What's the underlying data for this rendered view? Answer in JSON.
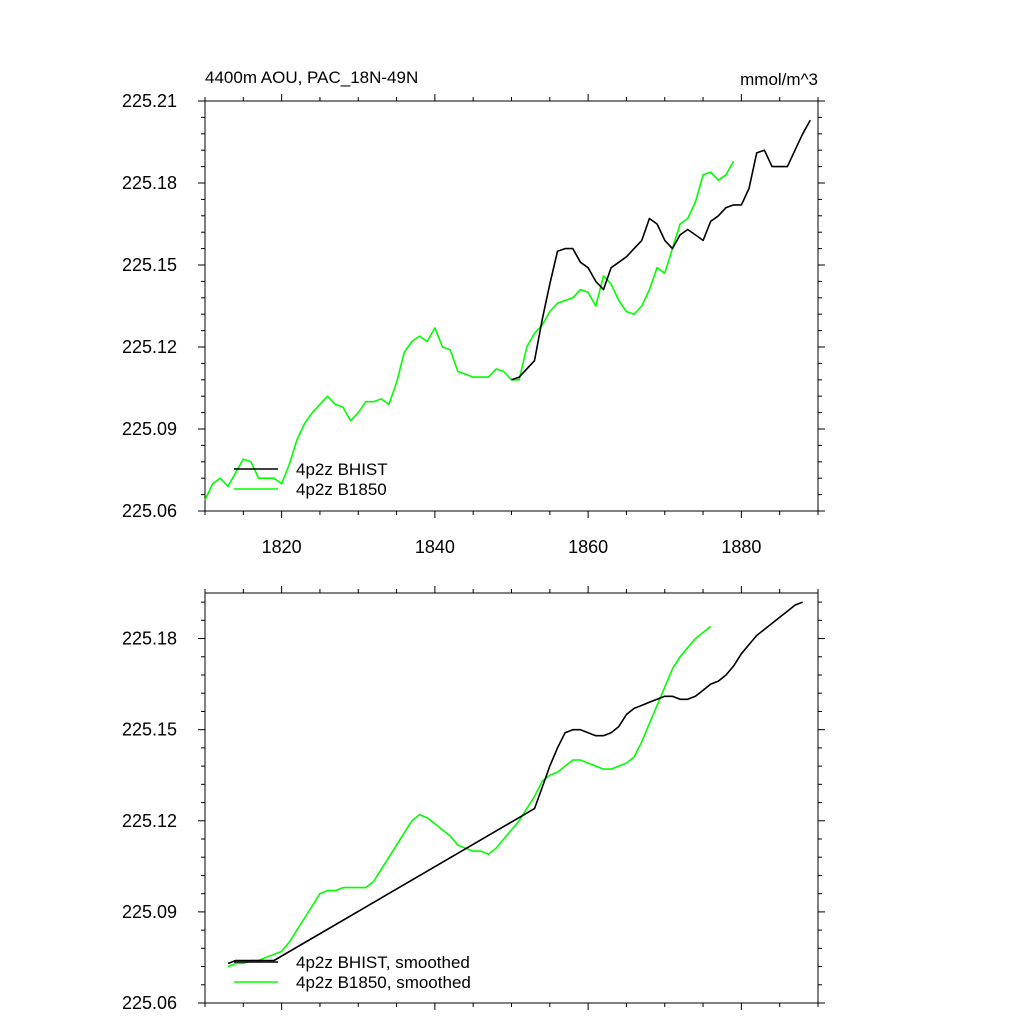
{
  "chart_data": [
    {
      "type": "line",
      "title_left": "4400m AOU, PAC_18N-49N",
      "title_right": "mmol/m^3",
      "xlim": [
        1810,
        1890
      ],
      "ylim": [
        225.06,
        225.21
      ],
      "x_ticks": [
        1820,
        1840,
        1860,
        1880
      ],
      "x_tick_labels": [
        "1820",
        "1840",
        "1860",
        "1880"
      ],
      "y_ticks": [
        225.06,
        225.09,
        225.12,
        225.15,
        225.18,
        225.21
      ],
      "y_tick_labels": [
        "225.06",
        "225.09",
        "225.12",
        "225.15",
        "225.18",
        "225.21"
      ],
      "legend_position": "lower-left",
      "series": [
        {
          "name": "4p2z BHIST",
          "color": "#000000",
          "x": [
            1850,
            1851,
            1852,
            1853,
            1854,
            1855,
            1856,
            1857,
            1858,
            1859,
            1860,
            1861,
            1862,
            1863,
            1864,
            1865,
            1866,
            1867,
            1868,
            1869,
            1870,
            1871,
            1872,
            1873,
            1874,
            1875,
            1876,
            1877,
            1878,
            1879,
            1880,
            1881,
            1882,
            1883,
            1884,
            1885,
            1886,
            1887,
            1888,
            1889
          ],
          "y": [
            225.108,
            225.109,
            225.112,
            225.115,
            225.13,
            225.143,
            225.155,
            225.156,
            225.156,
            225.151,
            225.149,
            225.144,
            225.141,
            225.149,
            225.151,
            225.153,
            225.156,
            225.159,
            225.167,
            225.165,
            225.159,
            225.156,
            225.161,
            225.163,
            225.161,
            225.159,
            225.166,
            225.168,
            225.171,
            225.172,
            225.172,
            225.178,
            225.191,
            225.192,
            225.186,
            225.186,
            225.186,
            225.192,
            225.198,
            225.203
          ]
        },
        {
          "name": "4p2z B1850",
          "color": "#00ff00",
          "x": [
            1810,
            1811,
            1812,
            1813,
            1814,
            1815,
            1816,
            1817,
            1818,
            1819,
            1820,
            1821,
            1822,
            1823,
            1824,
            1825,
            1826,
            1827,
            1828,
            1829,
            1830,
            1831,
            1832,
            1833,
            1834,
            1835,
            1836,
            1837,
            1838,
            1839,
            1840,
            1841,
            1842,
            1843,
            1844,
            1845,
            1846,
            1847,
            1848,
            1849,
            1850,
            1851,
            1852,
            1853,
            1854,
            1855,
            1856,
            1857,
            1858,
            1859,
            1860,
            1861,
            1862,
            1863,
            1864,
            1865,
            1866,
            1867,
            1868,
            1869,
            1870,
            1871,
            1872,
            1873,
            1874,
            1875,
            1876,
            1877,
            1878,
            1879
          ],
          "y": [
            225.064,
            225.07,
            225.072,
            225.069,
            225.074,
            225.079,
            225.078,
            225.072,
            225.072,
            225.072,
            225.07,
            225.077,
            225.086,
            225.092,
            225.096,
            225.099,
            225.102,
            225.099,
            225.098,
            225.093,
            225.096,
            225.1,
            225.1,
            225.101,
            225.099,
            225.107,
            225.118,
            225.122,
            225.124,
            225.122,
            225.127,
            225.12,
            225.119,
            225.111,
            225.11,
            225.109,
            225.109,
            225.109,
            225.112,
            225.111,
            225.108,
            225.108,
            225.12,
            225.125,
            225.128,
            225.133,
            225.136,
            225.137,
            225.138,
            225.141,
            225.14,
            225.135,
            225.146,
            225.143,
            225.137,
            225.133,
            225.132,
            225.135,
            225.141,
            225.149,
            225.147,
            225.156,
            225.165,
            225.167,
            225.173,
            225.183,
            225.184,
            225.181,
            225.183,
            225.188
          ]
        }
      ]
    },
    {
      "type": "line",
      "xlim": [
        1810,
        1890
      ],
      "ylim": [
        225.06,
        225.195
      ],
      "x_ticks": [
        1820,
        1840,
        1860,
        1880
      ],
      "y_ticks": [
        225.06,
        225.09,
        225.12,
        225.15,
        225.18
      ],
      "y_tick_labels": [
        "225.06",
        "225.09",
        "225.12",
        "225.15",
        "225.18"
      ],
      "legend_position": "lower-left",
      "series": [
        {
          "name": "4p2z BHIST, smoothed",
          "color": "#000000",
          "x": [
            1813,
            1814,
            1815,
            1816,
            1817,
            1818,
            1819,
            1853,
            1854,
            1855,
            1856,
            1857,
            1858,
            1859,
            1860,
            1861,
            1862,
            1863,
            1864,
            1865,
            1866,
            1867,
            1868,
            1869,
            1870,
            1871,
            1872,
            1873,
            1874,
            1875,
            1876,
            1877,
            1878,
            1879,
            1880,
            1881,
            1882,
            1883,
            1884,
            1885,
            1886,
            1887,
            1888
          ],
          "y": [
            225.073,
            225.074,
            225.074,
            225.074,
            225.074,
            225.074,
            225.074,
            225.124,
            225.131,
            225.138,
            225.144,
            225.149,
            225.15,
            225.15,
            225.149,
            225.148,
            225.148,
            225.149,
            225.151,
            225.155,
            225.157,
            225.158,
            225.159,
            225.16,
            225.161,
            225.161,
            225.16,
            225.16,
            225.161,
            225.163,
            225.165,
            225.166,
            225.168,
            225.171,
            225.175,
            225.178,
            225.181,
            225.183,
            225.185,
            225.187,
            225.189,
            225.191,
            225.192
          ]
        },
        {
          "name": "4p2z B1850, smoothed",
          "color": "#00ff00",
          "x": [
            1813,
            1814,
            1815,
            1816,
            1817,
            1818,
            1819,
            1820,
            1821,
            1822,
            1823,
            1824,
            1825,
            1826,
            1827,
            1828,
            1829,
            1830,
            1831,
            1832,
            1833,
            1834,
            1835,
            1836,
            1837,
            1838,
            1839,
            1840,
            1841,
            1842,
            1843,
            1844,
            1845,
            1846,
            1847,
            1848,
            1849,
            1850,
            1851,
            1852,
            1853,
            1854,
            1855,
            1856,
            1857,
            1858,
            1859,
            1860,
            1861,
            1862,
            1863,
            1864,
            1865,
            1866,
            1867,
            1868,
            1869,
            1870,
            1871,
            1872,
            1873,
            1874,
            1875,
            1876
          ],
          "y": [
            225.072,
            225.073,
            225.073,
            225.074,
            225.074,
            225.075,
            225.076,
            225.077,
            225.08,
            225.084,
            225.088,
            225.092,
            225.096,
            225.097,
            225.097,
            225.098,
            225.098,
            225.098,
            225.098,
            225.1,
            225.104,
            225.108,
            225.112,
            225.116,
            225.12,
            225.122,
            225.121,
            225.119,
            225.117,
            225.115,
            225.112,
            225.111,
            225.11,
            225.11,
            225.109,
            225.111,
            225.114,
            225.117,
            225.12,
            225.124,
            225.128,
            225.133,
            225.135,
            225.136,
            225.138,
            225.14,
            225.14,
            225.139,
            225.138,
            225.137,
            225.137,
            225.138,
            225.139,
            225.141,
            225.146,
            225.152,
            225.158,
            225.164,
            225.17,
            225.174,
            225.177,
            225.18,
            225.182,
            225.184
          ]
        }
      ]
    }
  ]
}
